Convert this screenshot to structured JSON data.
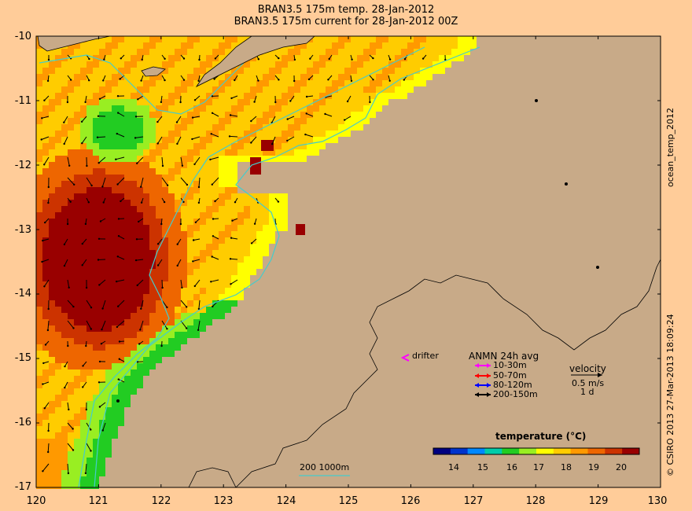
{
  "title": {
    "line1": "BRAN3.5 175m temp. 28-Jan-2012",
    "line2": "BRAN3.5 175m current for 28-Jan-2012 00Z"
  },
  "axes": {
    "y_ticks": [
      "-10",
      "-11",
      "-12",
      "-13",
      "-14",
      "-15",
      "-16",
      "-17"
    ],
    "x_ticks": [
      "120",
      "121",
      "122",
      "123",
      "124",
      "125",
      "126",
      "127",
      "128",
      "129",
      "130"
    ]
  },
  "side_text": {
    "top": "ocean_temp_2012",
    "bottom": "© CSIRO 2013   27-Mar-2013 18:09:24"
  },
  "drifter_label": "drifter",
  "anmn": {
    "title": "ANMN 24h avg",
    "items": [
      {
        "label": "10-30m",
        "color": "#ff00ff"
      },
      {
        "label": "50-70m",
        "color": "#ff0000"
      },
      {
        "label": "80-120m",
        "color": "#0000ff"
      },
      {
        "label": "200-150m",
        "color": "#000000"
      }
    ]
  },
  "velocity": {
    "title": "velocity",
    "scale": "0.5 m/s",
    "duration": "1 d"
  },
  "bathymetry_label": "200  1000m",
  "colorbar": {
    "title": "temperature (°C)",
    "ticks": [
      "14",
      "15",
      "16",
      "17",
      "18",
      "19",
      "20"
    ],
    "colors": [
      "#000080",
      "#0033cc",
      "#0088ff",
      "#00ccaa",
      "#22cc22",
      "#99ee22",
      "#ffff00",
      "#ffcc00",
      "#ff9900",
      "#ee6600",
      "#cc3300",
      "#990000"
    ]
  },
  "colors": {
    "land": "#c8aa88",
    "ocean_outside": "#ffcc99",
    "contour": "#44cccc"
  }
}
